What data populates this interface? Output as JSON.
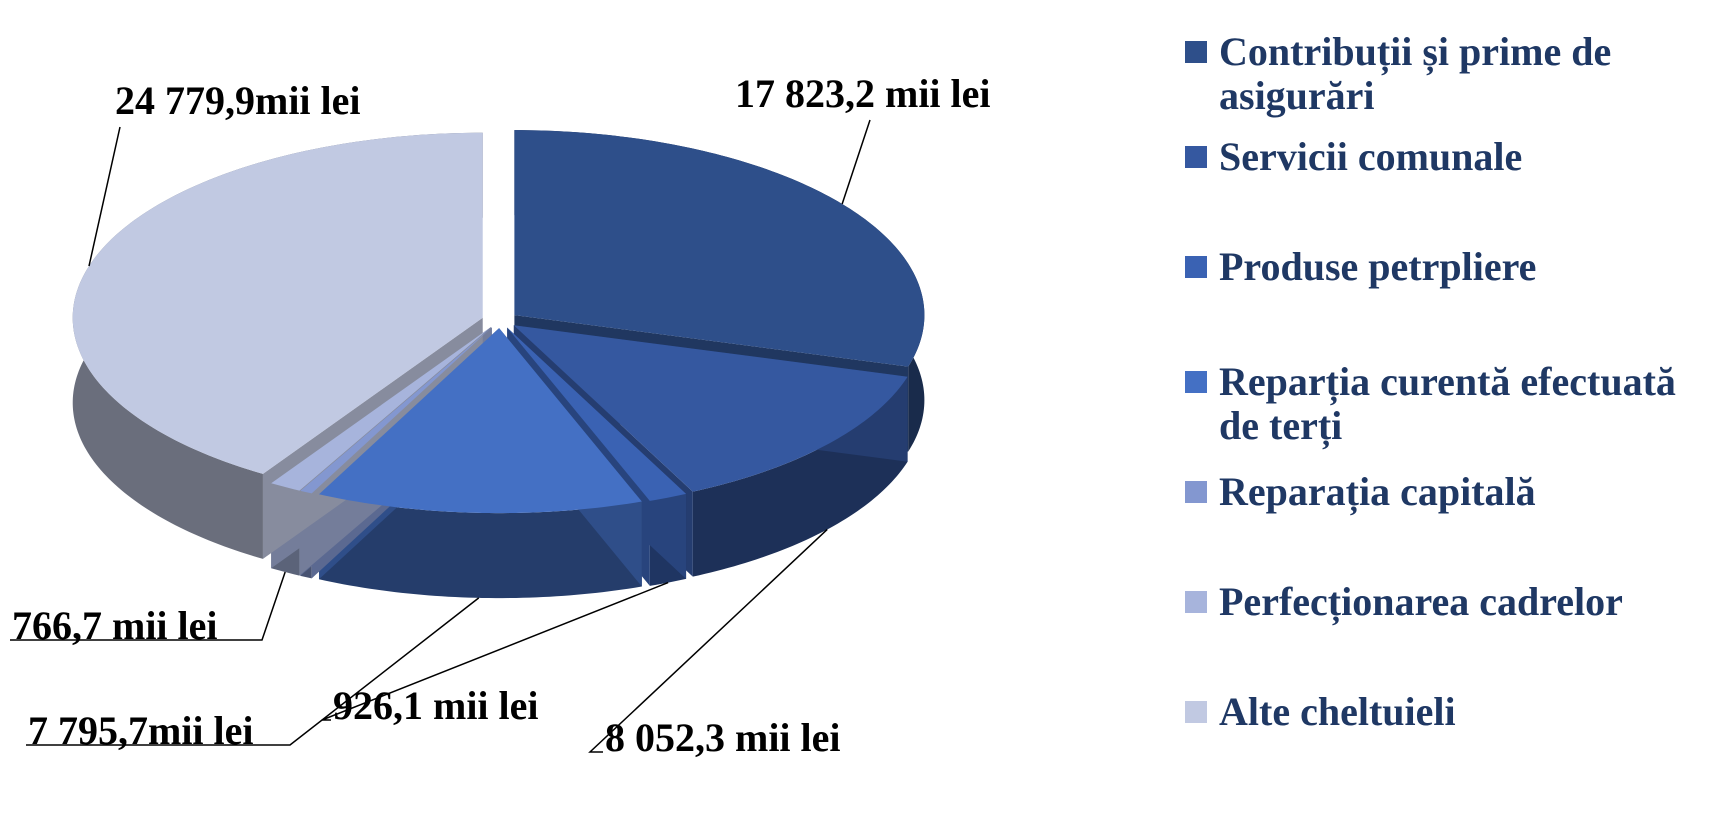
{
  "chart_data": {
    "type": "pie",
    "categories": [
      "Contribuții și prime de asigurări",
      "Servicii comunale",
      "Produse petrpliere",
      "Reparția curentă efectuată de terți",
      "Reparația capitală",
      "Perfecționarea cadrelor",
      "Alte cheltuieli"
    ],
    "values": [
      17823.2,
      8052.3,
      926.1,
      7795.7,
      300,
      766.7,
      24779.9
    ],
    "value_labels": [
      "17 823,2 mii lei",
      "8 052,3 mii lei",
      "926,1 mii lei",
      "7 795,7mii lei",
      null,
      "766,7 mii lei",
      "24 779,9mii lei"
    ],
    "colors": [
      "#2e4f8a",
      "#3558a0",
      "#3a62b3",
      "#4470c4",
      "#8397d0",
      "#a7b4dc",
      "#c1c9e2"
    ],
    "legend": "right"
  }
}
